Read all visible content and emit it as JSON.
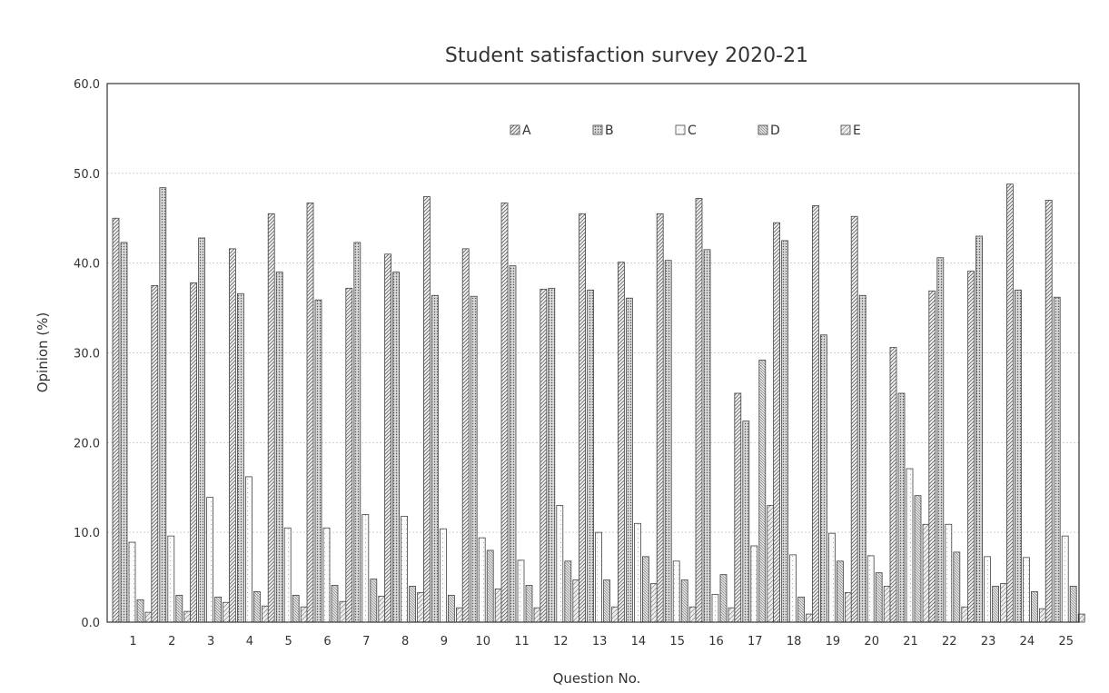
{
  "chart_data": {
    "type": "bar",
    "title": "Student satisfaction survey 2020-21",
    "xlabel": "Question No.",
    "ylabel": "Opinion (%)",
    "ylim": [
      0,
      60
    ],
    "yticks": [
      "0.0",
      "10.0",
      "20.0",
      "30.0",
      "40.0",
      "50.0",
      "60.0"
    ],
    "categories": [
      "1",
      "2",
      "3",
      "4",
      "5",
      "6",
      "7",
      "8",
      "9",
      "10",
      "11",
      "12",
      "13",
      "14",
      "15",
      "16",
      "17",
      "18",
      "19",
      "20",
      "21",
      "22",
      "23",
      "24",
      "25"
    ],
    "legend_position": "top-center",
    "grid": true,
    "series": [
      {
        "name": "A",
        "values": [
          45.0,
          37.5,
          37.8,
          41.6,
          45.5,
          46.7,
          37.2,
          41.0,
          47.4,
          41.6,
          46.7,
          37.1,
          45.5,
          40.1,
          45.5,
          47.2,
          25.5,
          44.5,
          46.4,
          45.2,
          30.6,
          36.9,
          39.1,
          48.8,
          47.0
        ]
      },
      {
        "name": "B",
        "values": [
          42.3,
          48.4,
          42.8,
          36.6,
          39.0,
          35.9,
          42.3,
          39.0,
          36.4,
          36.3,
          39.7,
          37.2,
          37.0,
          36.1,
          40.3,
          41.5,
          22.4,
          42.5,
          32.0,
          36.4,
          25.5,
          40.6,
          43.0,
          37.0,
          36.2
        ]
      },
      {
        "name": "C",
        "values": [
          8.9,
          9.6,
          13.9,
          16.2,
          10.5,
          10.5,
          12.0,
          11.8,
          10.4,
          9.4,
          6.9,
          13.0,
          10.0,
          11.0,
          6.8,
          3.1,
          8.5,
          7.5,
          9.9,
          7.4,
          17.1,
          10.9,
          7.3,
          7.2,
          9.6
        ]
      },
      {
        "name": "D",
        "values": [
          2.5,
          3.0,
          2.8,
          3.4,
          3.0,
          4.1,
          4.8,
          4.0,
          3.0,
          8.0,
          4.1,
          6.8,
          4.7,
          7.3,
          4.7,
          5.3,
          29.2,
          2.8,
          6.8,
          5.5,
          14.1,
          7.8,
          4.0,
          3.4,
          4.0
        ]
      },
      {
        "name": "E",
        "values": [
          1.1,
          1.2,
          2.2,
          1.8,
          1.7,
          2.3,
          2.9,
          3.3,
          1.6,
          3.7,
          1.6,
          4.7,
          1.7,
          4.3,
          1.7,
          1.6,
          13.0,
          0.9,
          3.3,
          4.0,
          10.9,
          1.7,
          4.3,
          1.5,
          0.9
        ]
      }
    ]
  },
  "colors": {
    "ink": "#333333",
    "grid": "#cfcfcf",
    "hatch_bg": "#f2f2f2"
  }
}
